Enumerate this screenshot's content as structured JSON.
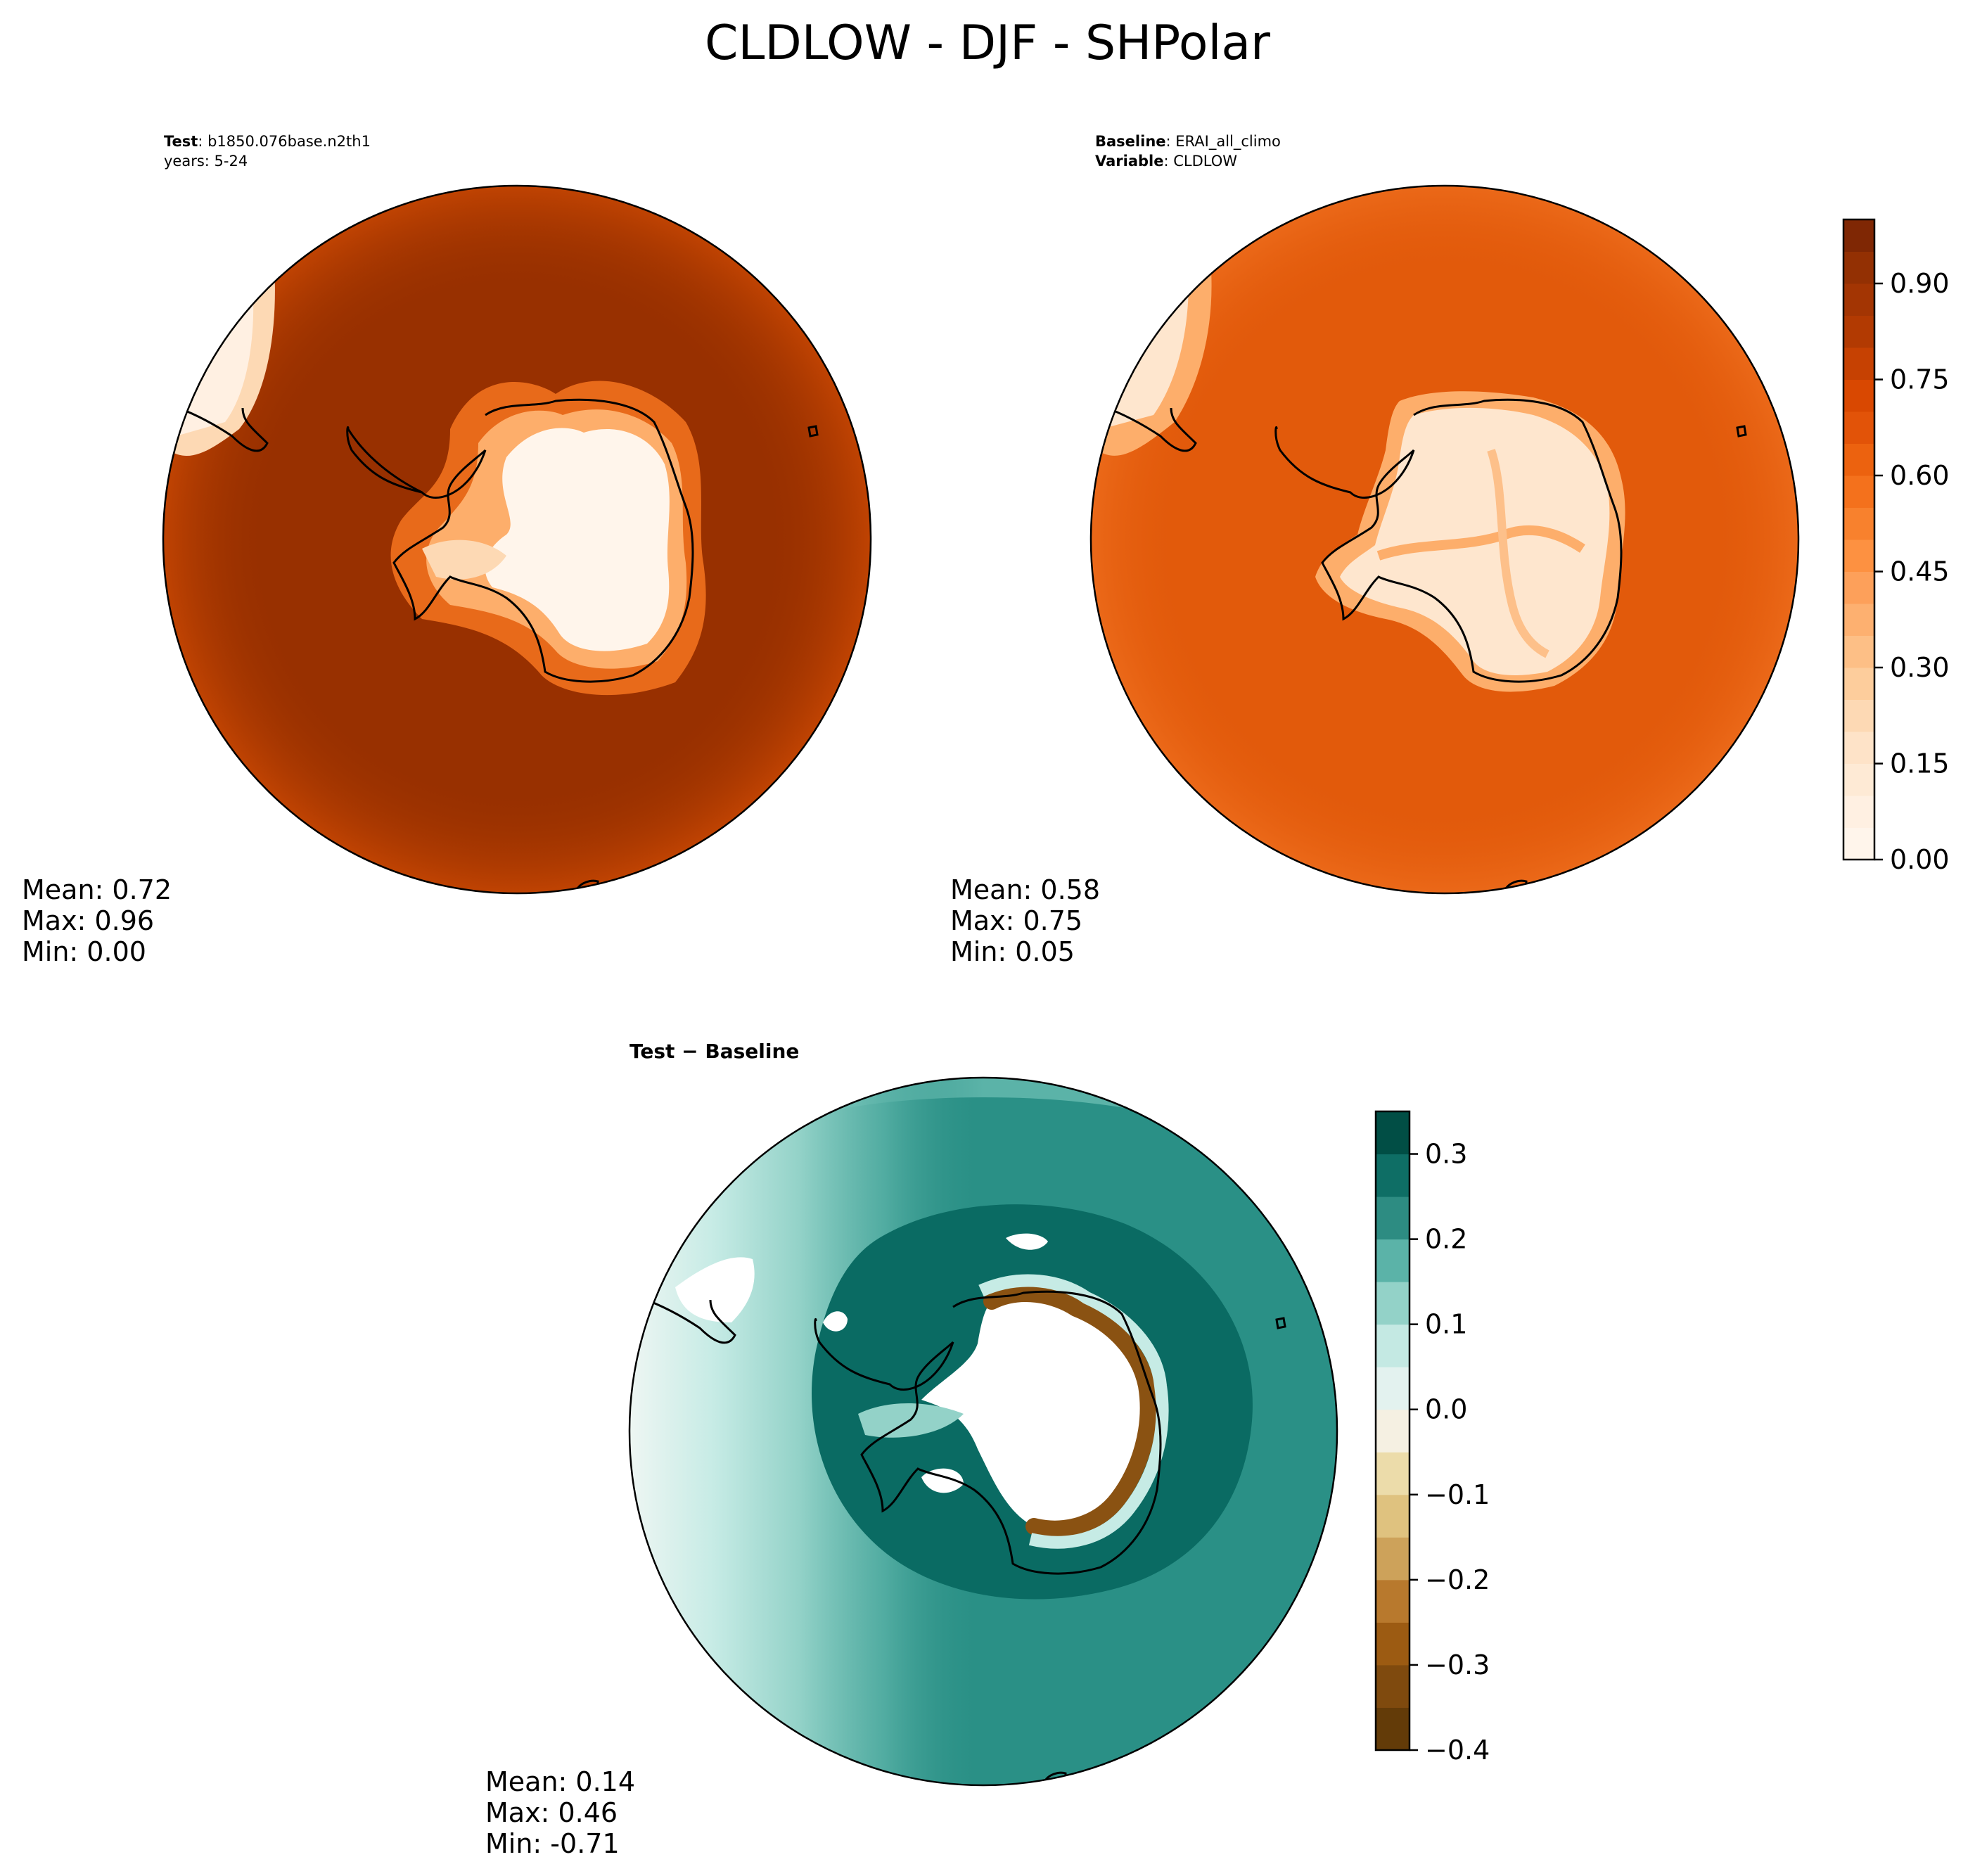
{
  "figure": {
    "title": "CLDLOW - DJF - SHPolar",
    "test": {
      "label": "Test",
      "name": "b1850.076base.n2th1",
      "years": "years: 5-24",
      "stats": {
        "mean": "Mean:  0.72",
        "max": "Max:  0.96",
        "min": "Min:  0.00"
      }
    },
    "baseline": {
      "label": "Baseline",
      "name": "ERAI_all_climo",
      "variable_label": "Variable",
      "variable": "CLDLOW",
      "stats": {
        "mean": "Mean:  0.58",
        "max": "Max:  0.75",
        "min": "Min:  0.05"
      }
    },
    "diff": {
      "title": "Test − Baseline",
      "stats": {
        "mean": "Mean:  0.14",
        "max": "Max:  0.46",
        "min": "Min: -0.71"
      }
    }
  },
  "colors": {
    "test_ocean": "#983000",
    "baseline_ocean": "#e25a0b",
    "ice": "#fff5eb",
    "diff_ocean": "#2a9086",
    "diff_dark": "#0a6b63",
    "diff_light": "#c6ebe5",
    "diff_brown": "#8a5212"
  },
  "chart_data": [
    {
      "type": "heatmap",
      "panel": "test",
      "projection": "south-polar-stereographic",
      "field": "CLDLOW",
      "season": "DJF",
      "mean": 0.72,
      "max": 0.96,
      "min": 0.0,
      "colorbar": "shared-with-baseline"
    },
    {
      "type": "heatmap",
      "panel": "baseline",
      "projection": "south-polar-stereographic",
      "field": "CLDLOW",
      "season": "DJF",
      "mean": 0.58,
      "max": 0.75,
      "min": 0.05,
      "colorbar": {
        "cmap": "Oranges",
        "range": [
          0.0,
          1.0
        ],
        "ticks": [
          0.0,
          0.15,
          0.3,
          0.45,
          0.6,
          0.75,
          0.9
        ],
        "tick_labels": [
          "0.00",
          "0.15",
          "0.30",
          "0.45",
          "0.60",
          "0.75",
          "0.90"
        ],
        "levels": 20,
        "colors": [
          "#fff5eb",
          "#fff0e2",
          "#feead5",
          "#fee3c8",
          "#fdd9b4",
          "#fdcd9c",
          "#fdbf86",
          "#fdb070",
          "#fda05a",
          "#fd9141",
          "#f8812d",
          "#f4711c",
          "#ec620f",
          "#e25308",
          "#d94801",
          "#c64102",
          "#b23a02",
          "#a33503",
          "#933003",
          "#7f2704"
        ]
      }
    },
    {
      "type": "heatmap",
      "panel": "diff",
      "projection": "south-polar-stereographic",
      "field": "CLDLOW difference",
      "mean": 0.14,
      "max": 0.46,
      "min": -0.71,
      "colorbar": {
        "cmap": "BrBG",
        "range": [
          -0.4,
          0.35
        ],
        "ticks": [
          -0.4,
          -0.3,
          -0.2,
          -0.1,
          0.0,
          0.1,
          0.2,
          0.3
        ],
        "tick_labels": [
          "−0.4",
          "−0.3",
          "−0.2",
          "−0.1",
          "0.0",
          "0.1",
          "0.2",
          "0.3"
        ],
        "levels": 15,
        "colors": [
          "#633b08",
          "#7f4a0e",
          "#9c5b12",
          "#b8792d",
          "#cda25a",
          "#dfc27f",
          "#ecdcaa",
          "#f5f0e2",
          "#e3f2ef",
          "#c4e9e3",
          "#93d2c8",
          "#5bb3a8",
          "#2d8c82",
          "#0e6e65",
          "#014e45"
        ]
      }
    }
  ]
}
